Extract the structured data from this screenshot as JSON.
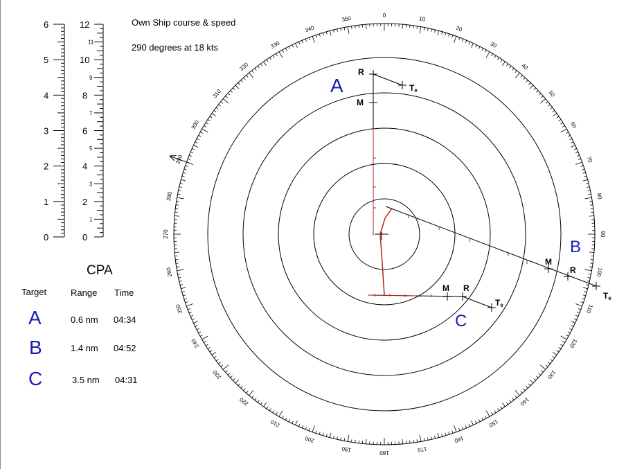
{
  "info": {
    "line1": "Own Ship course & speed",
    "line2": "290 degrees at 18 kts"
  },
  "scale": {
    "left_labels": [
      "0",
      "1",
      "2",
      "3",
      "4",
      "5",
      "6"
    ],
    "right_major_labels": [
      "0",
      "2",
      "4",
      "6",
      "8",
      "10",
      "12"
    ],
    "right_minor_labels": [
      "1",
      "3",
      "5",
      "7",
      "9",
      "11"
    ]
  },
  "cpa": {
    "title": "CPA",
    "headers": {
      "target": "Target",
      "range": "Range",
      "time": "Time"
    },
    "rows": [
      {
        "target": "A",
        "range": "0.6 nm",
        "time": "04:34"
      },
      {
        "target": "B",
        "range": "1.4 nm",
        "time": "04:52"
      },
      {
        "target": "C",
        "range": "3.5 nm",
        "time": "04:31"
      }
    ]
  },
  "plot": {
    "heading_deg": 290,
    "compass_labels": [
      "0",
      "10",
      "20",
      "30",
      "40",
      "50",
      "60",
      "70",
      "80",
      "90",
      "100",
      "110",
      "120",
      "130",
      "140",
      "150",
      "160",
      "170",
      "180",
      "190",
      "200",
      "210",
      "220",
      "230",
      "240",
      "250",
      "260",
      "270",
      "280",
      "290",
      "300",
      "310",
      "320",
      "330",
      "340",
      "350"
    ],
    "target_labels": {
      "A": "A",
      "B": "B",
      "C": "C"
    },
    "marker_labels": {
      "R": "R",
      "M": "M",
      "Te": "T",
      "Te_sub": "e"
    }
  },
  "colors": {
    "target_letter": "#1a1ab4",
    "trail": "#b22222",
    "line": "#000000"
  }
}
